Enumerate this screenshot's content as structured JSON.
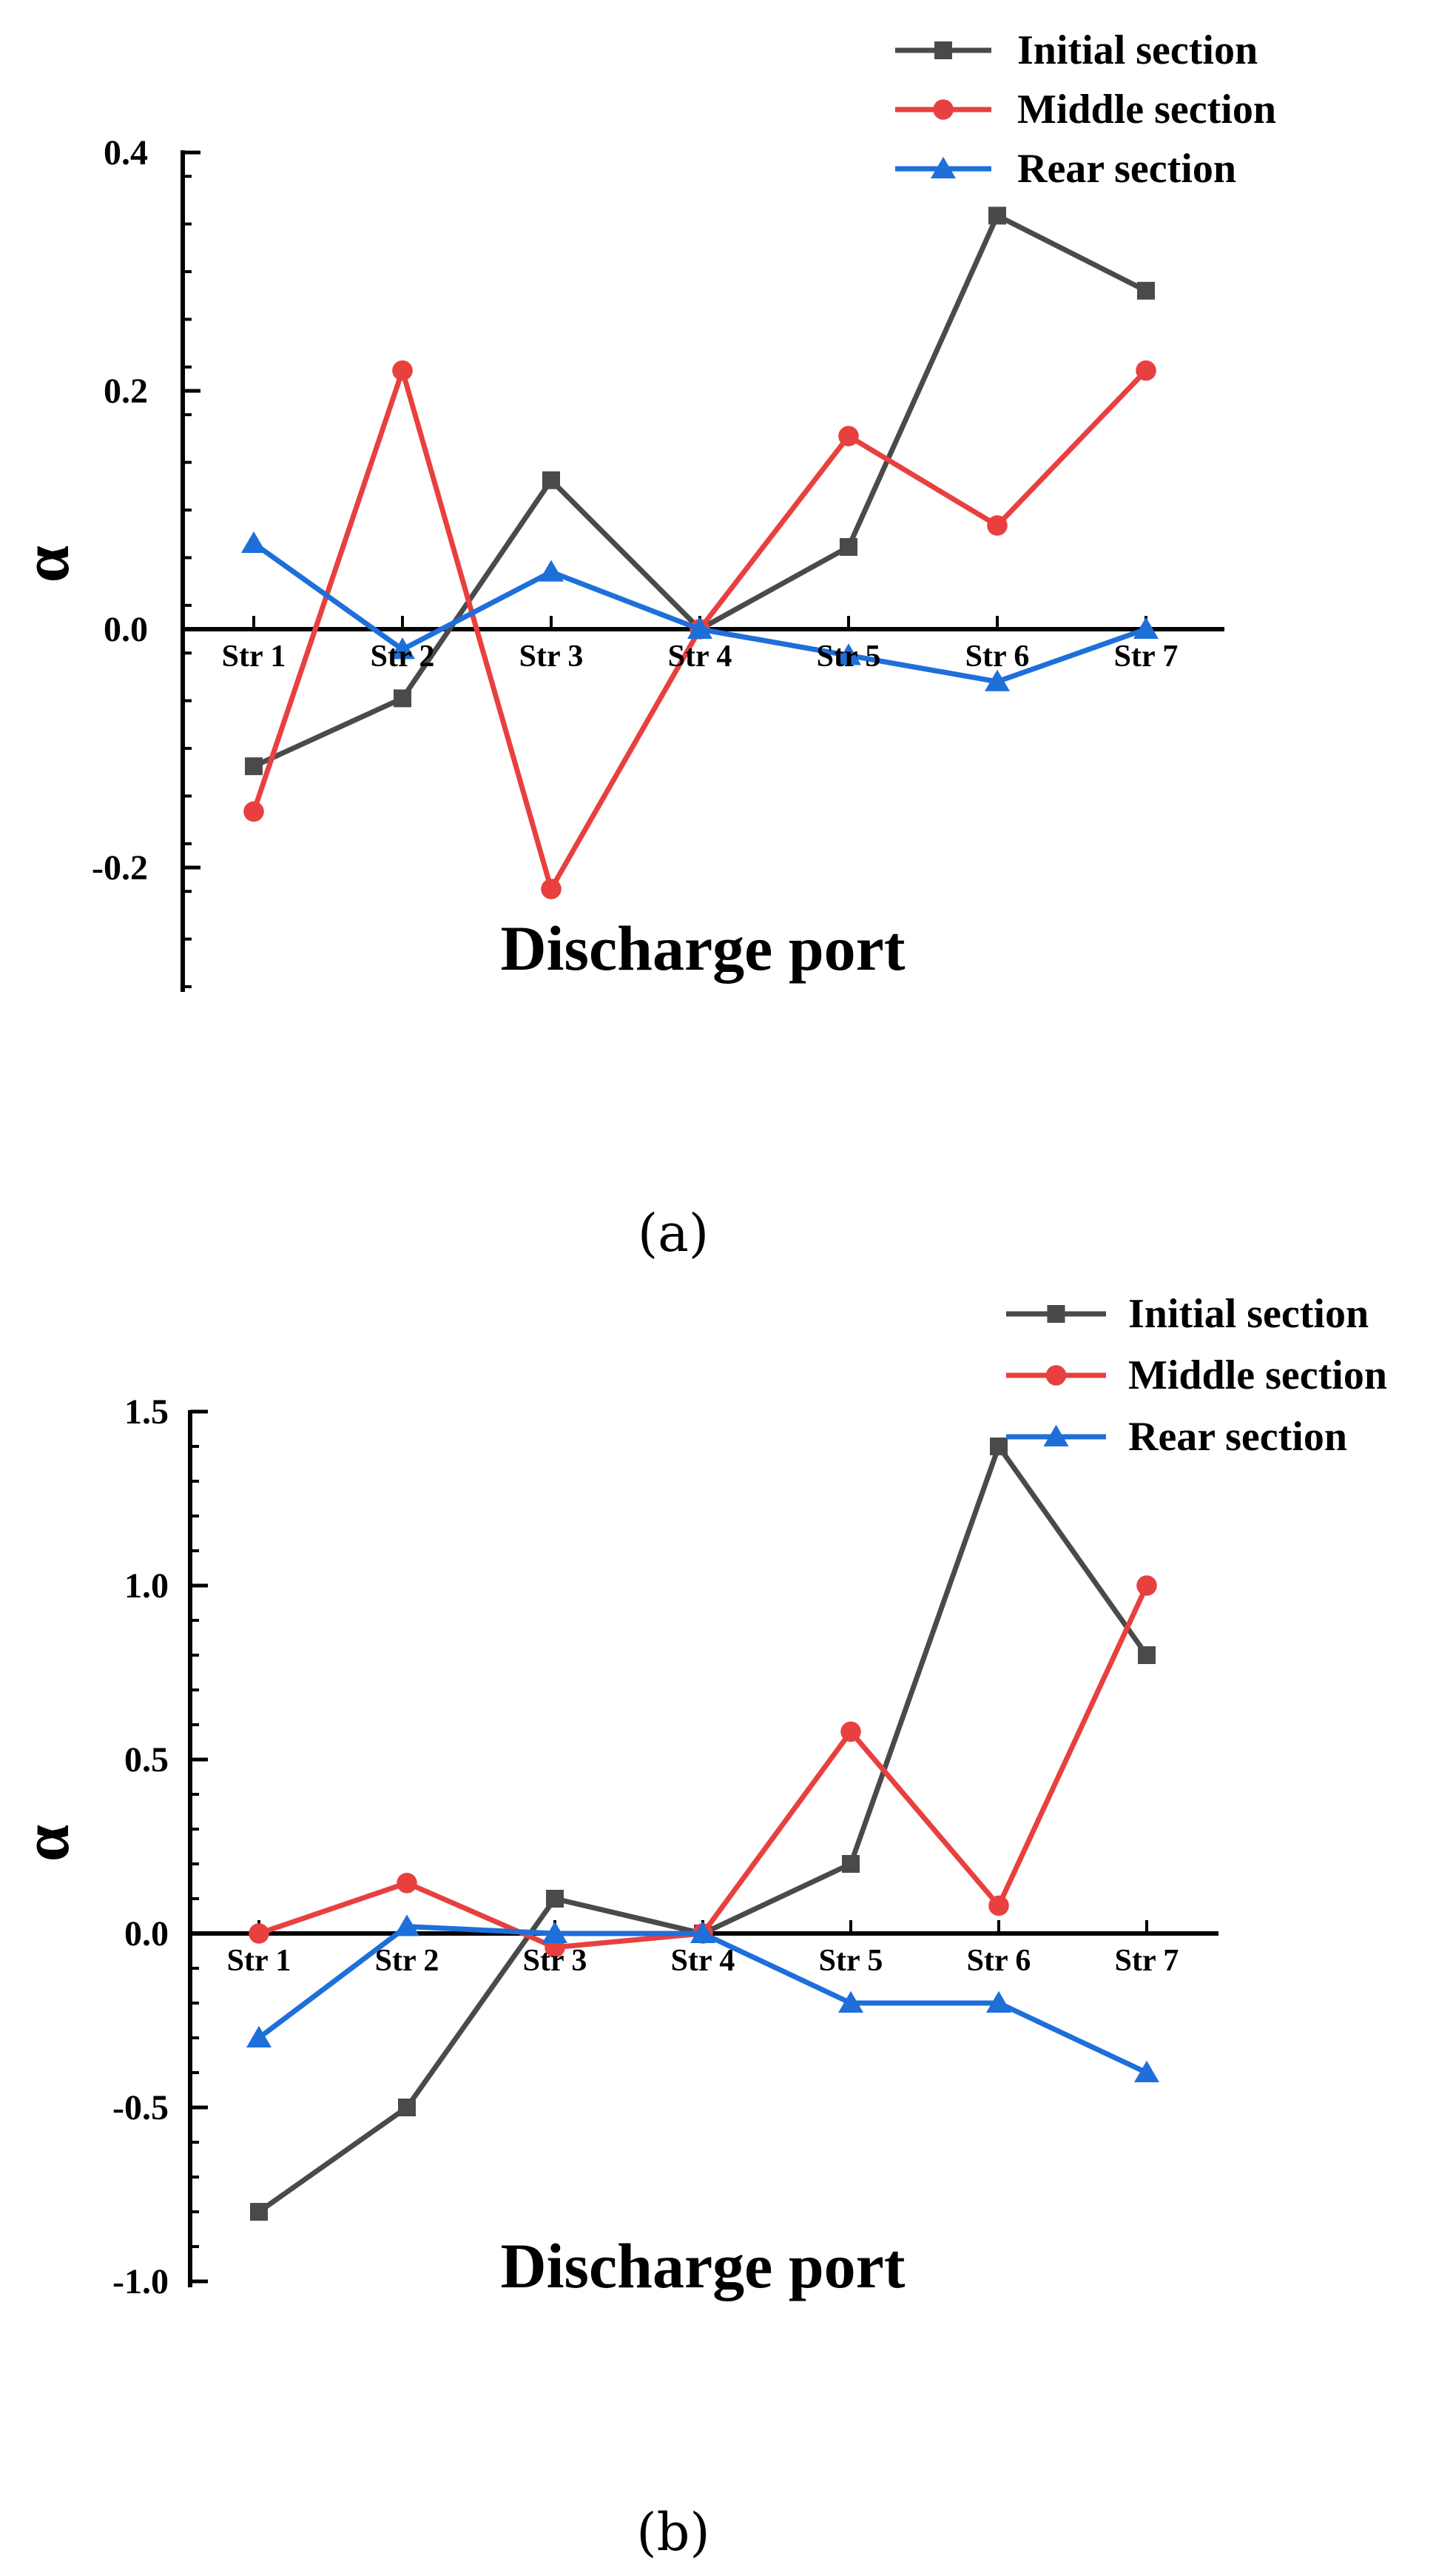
{
  "chart_data": [
    {
      "type": "line",
      "panel_label": "(a)",
      "categories": [
        "Str 1",
        "Str 2",
        "Str 3",
        "Str 4",
        "Str 5",
        "Str 6",
        "Str 7"
      ],
      "series": [
        {
          "name": "Initial section",
          "marker": "square",
          "color": "#4a4a4a",
          "values": [
            -0.115,
            -0.058,
            0.125,
            0.0,
            0.069,
            0.347,
            0.284
          ]
        },
        {
          "name": "Middle section",
          "marker": "circle",
          "color": "#e8403f",
          "values": [
            -0.153,
            0.217,
            -0.218,
            0.0,
            0.162,
            0.087,
            0.217
          ]
        },
        {
          "name": "Rear section",
          "marker": "triangle",
          "color": "#1e6fd9",
          "values": [
            0.072,
            -0.017,
            0.048,
            0.0,
            -0.022,
            -0.044,
            0.0
          ]
        }
      ],
      "xlabel": "Discharge port",
      "ylabel": "α",
      "ylim": [
        -0.3,
        0.4
      ],
      "yticks": [
        -0.2,
        0.0,
        0.2,
        0.4
      ],
      "ytick_labels": [
        "-0.2",
        "0.0",
        "0.2",
        "0.4"
      ],
      "grid": false,
      "legend_position": "top-right"
    },
    {
      "type": "line",
      "panel_label": "(b)",
      "categories": [
        "Str 1",
        "Str 2",
        "Str 3",
        "Str 4",
        "Str 5",
        "Str 6",
        "Str 7"
      ],
      "series": [
        {
          "name": "Initial section",
          "marker": "square",
          "color": "#4a4a4a",
          "values": [
            -0.8,
            -0.5,
            0.1,
            0.0,
            0.2,
            1.4,
            0.8
          ]
        },
        {
          "name": "Middle section",
          "marker": "circle",
          "color": "#e8403f",
          "values": [
            0.0,
            0.145,
            -0.04,
            0.0,
            0.58,
            0.08,
            1.0
          ]
        },
        {
          "name": "Rear section",
          "marker": "triangle",
          "color": "#1e6fd9",
          "values": [
            -0.3,
            0.02,
            0.0,
            0.0,
            -0.2,
            -0.2,
            -0.4
          ]
        }
      ],
      "xlabel": "Discharge port",
      "ylabel": "α",
      "ylim": [
        -1.0,
        1.5
      ],
      "yticks": [
        -1.0,
        -0.5,
        0.0,
        0.5,
        1.0,
        1.5
      ],
      "ytick_labels": [
        "-1.0",
        "-0.5",
        "0.0",
        "0.5",
        "1.0",
        "1.5"
      ],
      "grid": false,
      "legend_position": "top-right"
    }
  ]
}
